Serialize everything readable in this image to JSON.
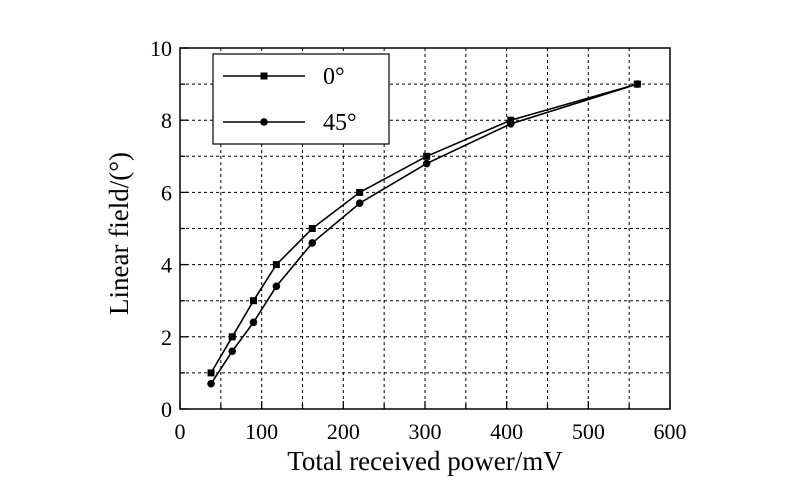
{
  "chart_data": {
    "type": "line",
    "title": "",
    "xlabel": "Total received power/mV",
    "ylabel": "Linear field/(°)",
    "xlim": [
      0,
      600
    ],
    "ylim": [
      0,
      10
    ],
    "x_ticks": [
      0,
      100,
      200,
      300,
      400,
      500,
      600
    ],
    "y_ticks": [
      0,
      2,
      4,
      6,
      8,
      10
    ],
    "x_tick_labels": [
      "0",
      "100",
      "200",
      "300",
      "400",
      "500",
      "600"
    ],
    "y_tick_labels": [
      "0",
      "2",
      "4",
      "6",
      "8",
      "10"
    ],
    "grid": true,
    "legend_position": "top-left",
    "series": [
      {
        "name": "0°",
        "marker": "square",
        "color": "#000000",
        "points": [
          {
            "x": 38,
            "y": 1.0
          },
          {
            "x": 64,
            "y": 2.0
          },
          {
            "x": 90,
            "y": 3.0
          },
          {
            "x": 118,
            "y": 4.0
          },
          {
            "x": 162,
            "y": 5.0
          },
          {
            "x": 220,
            "y": 6.0
          },
          {
            "x": 302,
            "y": 7.0
          },
          {
            "x": 405,
            "y": 8.0
          },
          {
            "x": 560,
            "y": 9.0
          }
        ]
      },
      {
        "name": "45°",
        "marker": "circle",
        "color": "#000000",
        "points": [
          {
            "x": 38,
            "y": 0.7
          },
          {
            "x": 64,
            "y": 1.6
          },
          {
            "x": 90,
            "y": 2.4
          },
          {
            "x": 118,
            "y": 3.4
          },
          {
            "x": 162,
            "y": 4.6
          },
          {
            "x": 220,
            "y": 5.7
          },
          {
            "x": 302,
            "y": 6.8
          },
          {
            "x": 405,
            "y": 7.9
          },
          {
            "x": 560,
            "y": 9.0
          }
        ]
      }
    ]
  }
}
